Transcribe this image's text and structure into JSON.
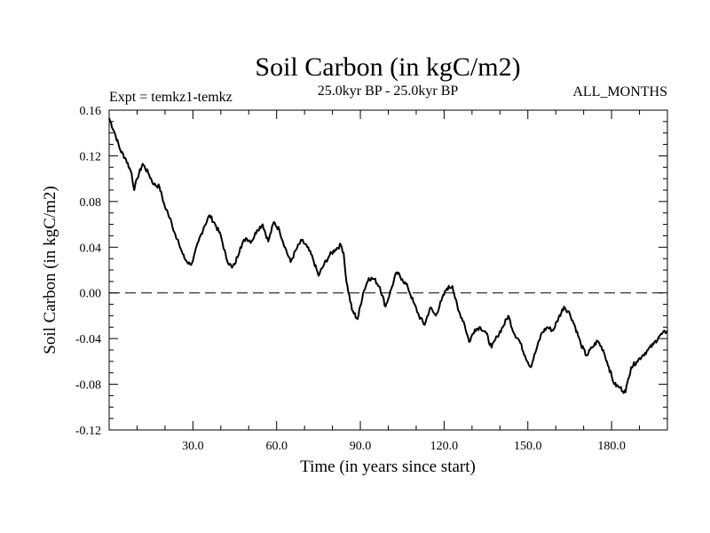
{
  "chart_data": {
    "type": "line",
    "title": "Soil Carbon (in kgC/m2)",
    "subtitle_left": "Expt = temkz1-temkz",
    "subtitle_center": "25.0kyr BP - 25.0kyr BP",
    "subtitle_right": "ALL_MONTHS",
    "xlabel": "Time (in years since start)",
    "ylabel": "Soil Carbon (in kgC/m2)",
    "xlim": [
      0,
      200
    ],
    "ylim": [
      -0.12,
      0.16
    ],
    "xticks": [
      30,
      60,
      90,
      120,
      150,
      180
    ],
    "xtick_labels": [
      "30.0",
      "60.0",
      "90.0",
      "120.0",
      "150.0",
      "180.0"
    ],
    "yticks": [
      -0.12,
      -0.08,
      -0.04,
      0.0,
      0.04,
      0.08,
      0.12,
      0.16
    ],
    "ytick_labels": [
      "-0.12",
      "-0.08",
      "-0.04",
      "0.00",
      "0.04",
      "0.08",
      "0.12",
      "0.16"
    ],
    "reference_line": {
      "y": 0.0,
      "style": "dashed"
    },
    "series": [
      {
        "name": "Soil Carbon",
        "x": [
          0,
          2,
          4,
          6,
          8,
          9,
          10,
          12,
          14,
          16,
          18,
          20,
          22,
          24,
          25,
          27,
          29,
          30,
          32,
          34,
          36,
          38,
          40,
          42,
          44,
          45,
          47,
          49,
          51,
          53,
          55,
          57,
          59,
          61,
          63,
          65,
          67,
          69,
          71,
          73,
          75,
          77,
          79,
          81,
          83,
          84,
          85,
          87,
          89,
          91,
          93,
          95,
          97,
          99,
          101,
          103,
          105,
          107,
          109,
          111,
          113,
          115,
          117,
          119,
          121,
          123,
          125,
          127,
          129,
          131,
          133,
          135,
          137,
          139,
          141,
          143,
          145,
          147,
          149,
          151,
          153,
          155,
          157,
          159,
          161,
          163,
          165,
          167,
          169,
          171,
          173,
          175,
          177,
          179,
          181,
          183,
          185,
          186,
          187,
          189,
          191,
          193,
          195,
          197,
          200
        ],
        "values": [
          0.153,
          0.14,
          0.125,
          0.117,
          0.105,
          0.09,
          0.1,
          0.113,
          0.105,
          0.095,
          0.093,
          0.075,
          0.065,
          0.048,
          0.043,
          0.03,
          0.025,
          0.028,
          0.045,
          0.058,
          0.068,
          0.06,
          0.05,
          0.03,
          0.022,
          0.025,
          0.04,
          0.048,
          0.045,
          0.055,
          0.06,
          0.045,
          0.062,
          0.055,
          0.04,
          0.027,
          0.038,
          0.046,
          0.04,
          0.03,
          0.015,
          0.025,
          0.033,
          0.038,
          0.042,
          0.035,
          0.01,
          -0.015,
          -0.023,
          0.0,
          0.013,
          0.012,
          0.005,
          -0.012,
          0.003,
          0.018,
          0.012,
          0.005,
          -0.008,
          -0.02,
          -0.028,
          -0.013,
          -0.02,
          -0.007,
          0.004,
          0.006,
          -0.015,
          -0.025,
          -0.043,
          -0.032,
          -0.03,
          -0.035,
          -0.048,
          -0.038,
          -0.03,
          -0.02,
          -0.035,
          -0.042,
          -0.055,
          -0.065,
          -0.05,
          -0.035,
          -0.03,
          -0.033,
          -0.022,
          -0.012,
          -0.018,
          -0.03,
          -0.045,
          -0.055,
          -0.048,
          -0.042,
          -0.05,
          -0.065,
          -0.08,
          -0.083,
          -0.087,
          -0.075,
          -0.065,
          -0.06,
          -0.055,
          -0.05,
          -0.045,
          -0.038,
          -0.033
        ]
      }
    ]
  }
}
